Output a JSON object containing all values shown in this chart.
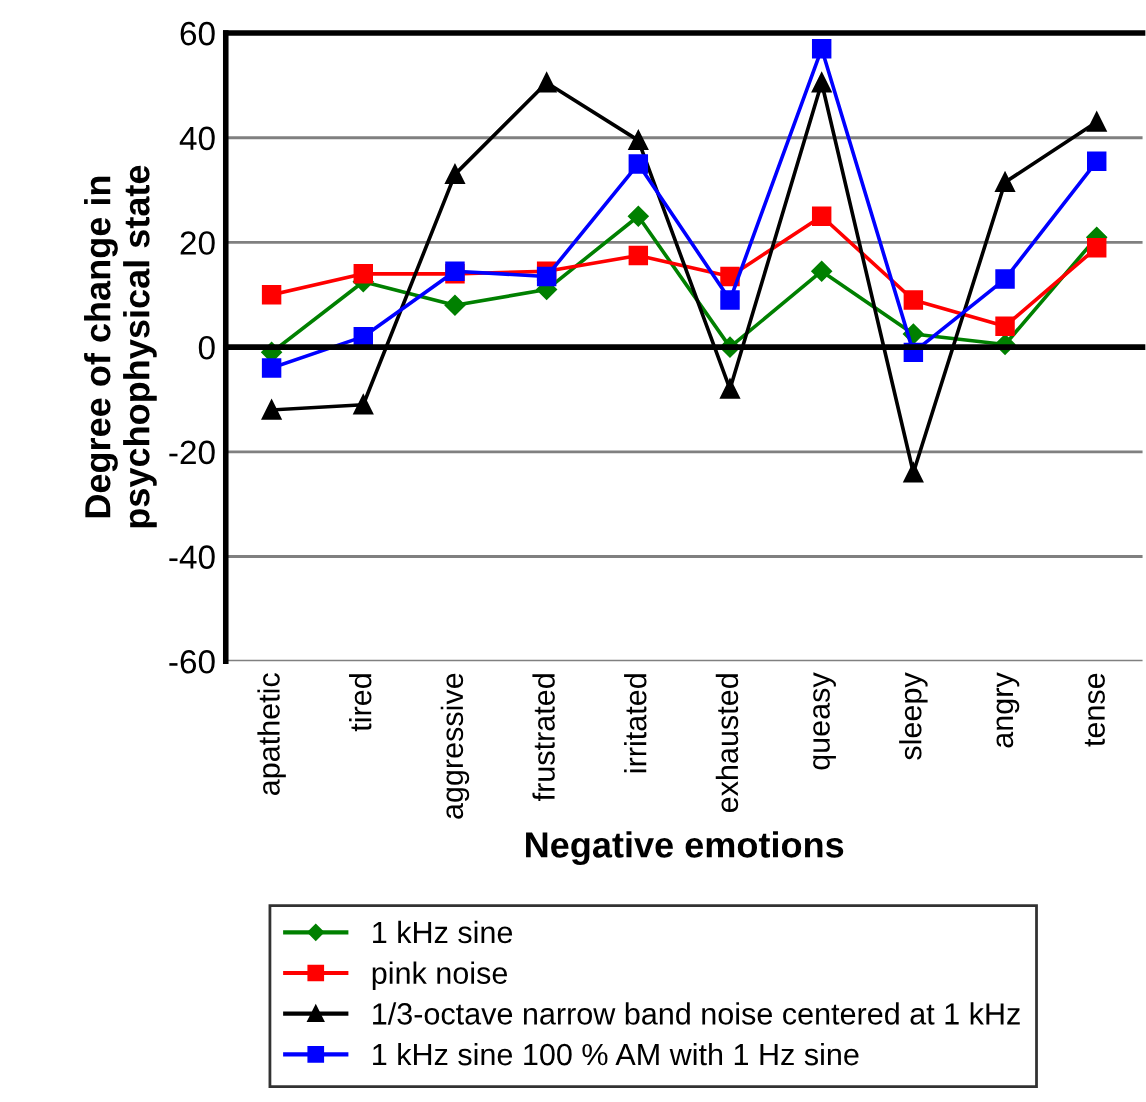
{
  "chart_data": {
    "type": "line",
    "xlabel": "Negative emotions",
    "ylabel": "Degree of change in\npsychophysical state",
    "categories": [
      "apathetic",
      "tired",
      "aggressive",
      "frustrated",
      "irritated",
      "exhausted",
      "queasy",
      "sleepy",
      "angry",
      "tense"
    ],
    "series": [
      {
        "name": "1 kHz sine",
        "color": "#008000",
        "marker": "diamond",
        "values": [
          -1,
          12.5,
          8,
          11,
          25,
          0,
          14.5,
          2.5,
          0.5,
          21
        ]
      },
      {
        "name": "pink noise",
        "color": "#ff0000",
        "marker": "square",
        "values": [
          10,
          14,
          14,
          14.5,
          17.5,
          13.5,
          25,
          9,
          4,
          19
        ]
      },
      {
        "name": "1/3-octave narrow band noise centered at 1 kHz",
        "color": "#000000",
        "marker": "triangle",
        "values": [
          -12,
          -11,
          33,
          50.5,
          39.5,
          -8,
          50.5,
          -24,
          31.5,
          43
        ]
      },
      {
        "name": "1 kHz sine 100 % AM with 1 Hz sine",
        "color": "#0000ff",
        "marker": "square",
        "values": [
          -4,
          2,
          14.5,
          13.5,
          35,
          9,
          57,
          -1,
          13,
          35.5
        ]
      }
    ],
    "ylim": [
      -60,
      60
    ],
    "yticks": [
      -60,
      -40,
      -20,
      0,
      20,
      40,
      60
    ],
    "grid": "y",
    "legend": "bottom",
    "line_style": "solid"
  }
}
